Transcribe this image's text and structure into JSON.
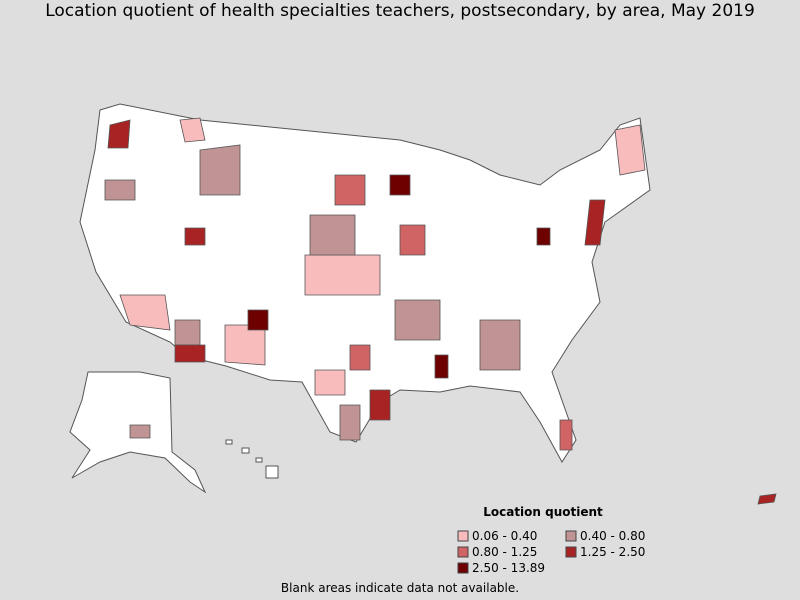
{
  "title": "Location quotient of health specialties teachers, postsecondary, by area, May 2019",
  "legend": {
    "title": "Location quotient",
    "items": [
      {
        "label": "0.06 - 0.40",
        "color": "#f8bcbc"
      },
      {
        "label": "0.40 - 0.80",
        "color": "#c09494"
      },
      {
        "label": "0.80 - 1.25",
        "color": "#d06464"
      },
      {
        "label": "1.25 - 2.50",
        "color": "#a82424"
      },
      {
        "label": "2.50 - 13.89",
        "color": "#6e0000"
      }
    ]
  },
  "note": "Blank areas indicate data not available."
}
